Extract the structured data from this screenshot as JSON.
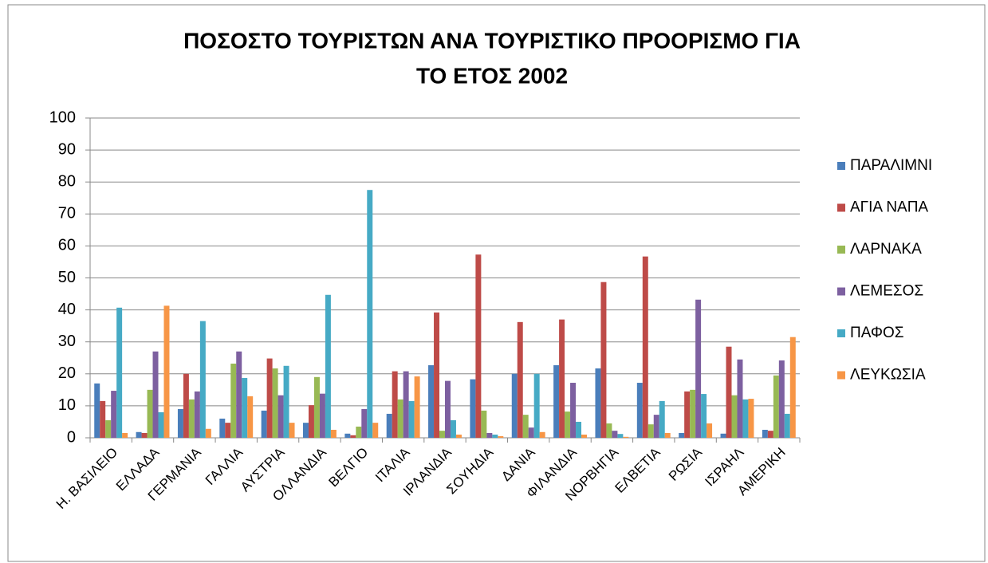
{
  "chart_data": {
    "type": "bar",
    "title": [
      "ΠΟΣΟΣΤΟ ΤΟΥΡΙΣΤΩΝ ΑΝΑ ΤΟΥΡΙΣΤΙΚΟ ΠΡΟΟΡΙΣΜΟ  ΓΙΑ",
      "ΤΟ ΕΤΟΣ 2002"
    ],
    "categories": [
      "Η. ΒΑΣΙΛΕΙΟ",
      "ΕΛΛΑΔΑ",
      "ΓΕΡΜΑΝΙΑ",
      "ΓΑΛΛΙΑ",
      "ΑΥΣΤΡΙΑ",
      "ΟΛΛΑΝΔΙΑ",
      "ΒΕΛΓΙΟ",
      "ΙΤΑΛΙΑ",
      "ΙΡΛΑΝΔΙΑ",
      "ΣΟΥΗΔΙΑ",
      "ΔΑΝΙΑ",
      "ΦΙΛΑΝΔΙΑ",
      "ΝΟΡΒΗΓΙΑ",
      "ΕΛΒΕΤΙΑ",
      "ΡΩΣΙΑ",
      "ΙΣΡΑΗΛ",
      "ΑΜΕΡΙΚΗ"
    ],
    "series": [
      {
        "name": "ΠΑΡΑΛΙΜΝΙ",
        "color": "#4a7ebb",
        "values": [
          17,
          1.8,
          9,
          6,
          8.5,
          4.7,
          1.3,
          7.5,
          22.7,
          18.3,
          20,
          22.7,
          21.7,
          17.2,
          1.5,
          1.3,
          2.5
        ]
      },
      {
        "name": "ΑΓΙΑ ΝΑΠΑ",
        "color": "#be4b48",
        "values": [
          11.5,
          1.5,
          20,
          4.7,
          24.8,
          10.2,
          0.8,
          20.8,
          39.2,
          57.3,
          36.2,
          37,
          48.7,
          56.7,
          14.5,
          28.5,
          2.2
        ]
      },
      {
        "name": "ΛΑΡΝΑΚΑ",
        "color": "#98b954",
        "values": [
          5.5,
          15,
          12,
          23.2,
          21.7,
          19,
          3.5,
          12,
          2.2,
          8.5,
          7.2,
          8.2,
          4.5,
          4.2,
          15,
          13.3,
          19.5
        ]
      },
      {
        "name": "ΛΕΜΕΣΟΣ",
        "color": "#7d60a0",
        "values": [
          14.7,
          27,
          14.5,
          27,
          13.3,
          13.8,
          9,
          20.8,
          17.8,
          1.5,
          3.2,
          17.2,
          2.2,
          7.2,
          43.2,
          24.5,
          24.2
        ]
      },
      {
        "name": "ΠΑΦΟΣ",
        "color": "#46aac5",
        "values": [
          40.7,
          8,
          36.5,
          18.7,
          22.5,
          44.7,
          77.5,
          11.5,
          5.5,
          1,
          20,
          5,
          1.2,
          11.5,
          13.7,
          12,
          7.5
        ]
      },
      {
        "name": "ΛΕΥΚΩΣΙΑ",
        "color": "#f79646",
        "values": [
          1.5,
          41.3,
          2.8,
          13,
          4.7,
          2.5,
          4.7,
          19.2,
          1,
          0.5,
          1.8,
          1,
          0.3,
          1.5,
          4.5,
          12.2,
          31.5
        ]
      }
    ],
    "ylim": [
      0,
      100
    ],
    "yticks": [
      0,
      10,
      20,
      30,
      40,
      50,
      60,
      70,
      80,
      90,
      100
    ],
    "grid": true,
    "legend": "right"
  }
}
